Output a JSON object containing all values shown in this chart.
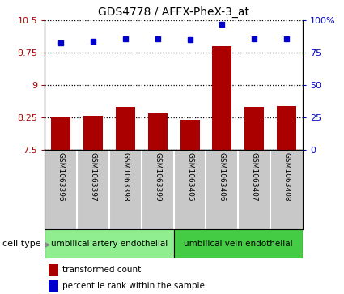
{
  "title": "GDS4778 / AFFX-PheX-3_at",
  "samples": [
    "GSM1063396",
    "GSM1063397",
    "GSM1063398",
    "GSM1063399",
    "GSM1063405",
    "GSM1063406",
    "GSM1063407",
    "GSM1063408"
  ],
  "transformed_counts": [
    8.25,
    8.3,
    8.5,
    8.35,
    8.2,
    9.9,
    8.5,
    8.52
  ],
  "percentile_ranks": [
    83,
    84,
    86,
    86,
    85,
    97,
    86,
    86
  ],
  "ylim_left": [
    7.5,
    10.5
  ],
  "ylim_right": [
    0,
    100
  ],
  "yticks_left": [
    7.5,
    8.25,
    9.0,
    9.75,
    10.5
  ],
  "ytick_labels_left": [
    "7.5",
    "8.25",
    "9",
    "9.75",
    "10.5"
  ],
  "yticks_right": [
    0,
    25,
    50,
    75,
    100
  ],
  "ytick_labels_right": [
    "0",
    "25",
    "50",
    "75",
    "100%"
  ],
  "bar_color": "#aa0000",
  "dot_color": "#0000cc",
  "cell_type_groups": [
    {
      "label": "umbilical artery endothelial",
      "start": 0,
      "end": 4,
      "color": "#90ee90"
    },
    {
      "label": "umbilical vein endothelial",
      "start": 4,
      "end": 8,
      "color": "#44cc44"
    }
  ],
  "legend_bar_label": "transformed count",
  "legend_dot_label": "percentile rank within the sample",
  "cell_type_label": "cell type",
  "sample_box_color": "#c8c8c8",
  "sample_box_border": "#666666"
}
